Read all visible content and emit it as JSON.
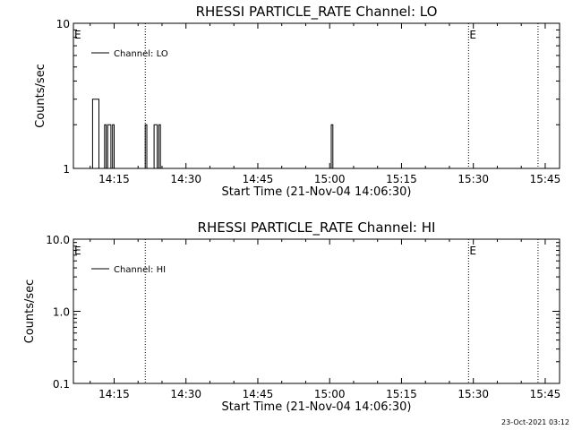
{
  "footer": {
    "timestamp": "23-Oct-2021 03:12"
  },
  "chart_data": [
    {
      "type": "line",
      "title": "RHESSI PARTICLE_RATE Channel: LO",
      "xlabel": "Start Time (21-Nov-04 14:06:30)",
      "ylabel": "Counts/sec",
      "yscale": "log",
      "xlim": [
        "14:06:30",
        "15:48:00"
      ],
      "ylim": [
        1,
        10
      ],
      "x_ticks": [
        "14:15",
        "14:30",
        "14:45",
        "15:00",
        "15:15",
        "15:30",
        "15:45"
      ],
      "y_ticks": [
        "1",
        "10"
      ],
      "grid": false,
      "legend": "top-left",
      "series": [
        {
          "name": "Channel: LO",
          "color": "#000000",
          "points": [
            {
              "x": "14:09:50",
              "y": 1
            },
            {
              "x": "14:10:30",
              "y": 3
            },
            {
              "x": "14:11:10",
              "y": 3
            },
            {
              "x": "14:11:50",
              "y": 1
            },
            {
              "x": "14:12:40",
              "y": 1
            },
            {
              "x": "14:13:00",
              "y": 2
            },
            {
              "x": "14:13:20",
              "y": 1
            },
            {
              "x": "14:13:40",
              "y": 2
            },
            {
              "x": "14:14:00",
              "y": 2
            },
            {
              "x": "14:14:20",
              "y": 1
            },
            {
              "x": "14:14:40",
              "y": 2
            },
            {
              "x": "14:15:00",
              "y": 1
            },
            {
              "x": "14:21:10",
              "y": 1
            },
            {
              "x": "14:21:30",
              "y": 2
            },
            {
              "x": "14:21:50",
              "y": 1
            },
            {
              "x": "14:23:00",
              "y": 1
            },
            {
              "x": "14:23:20",
              "y": 2
            },
            {
              "x": "14:23:40",
              "y": 2
            },
            {
              "x": "14:24:00",
              "y": 1
            },
            {
              "x": "14:24:20",
              "y": 2
            },
            {
              "x": "14:24:40",
              "y": 1
            },
            {
              "x": "15:00:00",
              "y": 1
            },
            {
              "x": "15:00:20",
              "y": 2
            },
            {
              "x": "15:00:40",
              "y": 1
            }
          ]
        }
      ],
      "vlines": [
        {
          "x": "14:21:30",
          "label": ""
        },
        {
          "x": "15:29:00",
          "label": "E"
        },
        {
          "x": "15:43:30",
          "label": ""
        }
      ],
      "annotations": [
        {
          "x": "14:06:30",
          "text": "E"
        }
      ]
    },
    {
      "type": "line",
      "title": "RHESSI PARTICLE_RATE Channel: HI",
      "xlabel": "Start Time (21-Nov-04 14:06:30)",
      "ylabel": "Counts/sec",
      "yscale": "log",
      "xlim": [
        "14:06:30",
        "15:48:00"
      ],
      "ylim": [
        0.1,
        10
      ],
      "x_ticks": [
        "14:15",
        "14:30",
        "14:45",
        "15:00",
        "15:15",
        "15:30",
        "15:45"
      ],
      "y_ticks": [
        "0.1",
        "1.0",
        "10.0"
      ],
      "grid": false,
      "legend": "top-left",
      "series": [
        {
          "name": "Channel: HI",
          "color": "#000000",
          "points": []
        }
      ],
      "vlines": [
        {
          "x": "14:21:30",
          "label": ""
        },
        {
          "x": "15:29:00",
          "label": "E"
        },
        {
          "x": "15:43:30",
          "label": ""
        }
      ],
      "annotations": [
        {
          "x": "14:06:30",
          "text": "E"
        }
      ]
    }
  ]
}
